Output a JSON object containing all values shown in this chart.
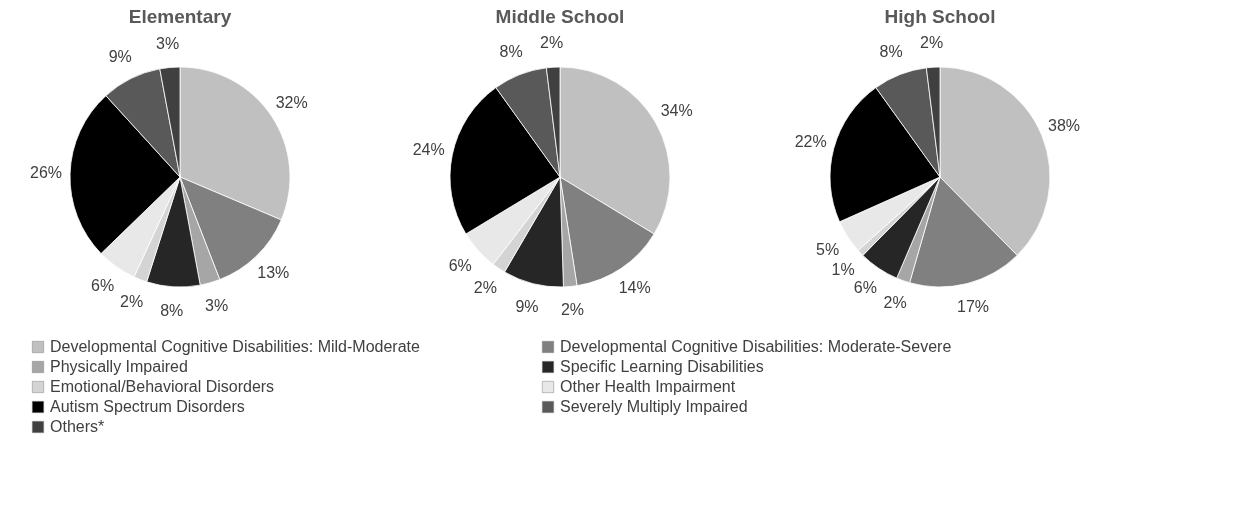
{
  "chart_data": [
    {
      "type": "pie",
      "title": "Elementary",
      "categories": [
        "Developmental Cognitive Disabilities: Mild-Moderate",
        "Developmental Cognitive Disabilities: Moderate-Severe",
        "Physically Impaired",
        "Specific Learning Disabilities",
        "Emotional/Behavioral Disorders",
        "Other Health Impairment",
        "Autism Spectrum Disorders",
        "Severely Multiply Impaired",
        "Others*"
      ],
      "values": [
        32,
        13,
        3,
        8,
        2,
        6,
        26,
        9,
        3
      ],
      "value_labels": [
        "32%",
        "13%",
        "3%",
        "8%",
        "2%",
        "6%",
        "26%",
        "9%",
        "3%"
      ],
      "colors": [
        "#c0c0c0",
        "#808080",
        "#a6a6a6",
        "#262626",
        "#d4d4d4",
        "#e8e8e8",
        "#000000",
        "#595959",
        "#404040"
      ],
      "legend": "bottom"
    },
    {
      "type": "pie",
      "title": "Middle School",
      "categories": [
        null,
        null,
        null,
        null,
        null,
        null,
        null,
        null,
        null
      ],
      "values": [
        34,
        14,
        2,
        9,
        2,
        6,
        24,
        8,
        2
      ],
      "value_labels": [
        "34%",
        "14%",
        "2%",
        "9%",
        "2%",
        "6%",
        "24%",
        "8%",
        "2%"
      ],
      "colors": [
        "#c0c0c0",
        "#808080",
        "#a6a6a6",
        "#262626",
        "#d4d4d4",
        "#e8e8e8",
        "#000000",
        "#595959",
        "#404040"
      ]
    },
    {
      "type": "pie",
      "title": "High School",
      "categories": [
        null,
        null,
        null,
        null,
        null,
        null,
        null,
        null,
        null
      ],
      "values": [
        38,
        17,
        2,
        6,
        1,
        5,
        22,
        8,
        2
      ],
      "value_labels": [
        "38%",
        "17%",
        "2%",
        "6%",
        "1%",
        "5%",
        "22%",
        "8%",
        "2%"
      ],
      "colors": [
        "#c0c0c0",
        "#808080",
        "#a6a6a6",
        "#262626",
        "#d4d4d4",
        "#e8e8e8",
        "#000000",
        "#595959",
        "#404040"
      ]
    }
  ]
}
